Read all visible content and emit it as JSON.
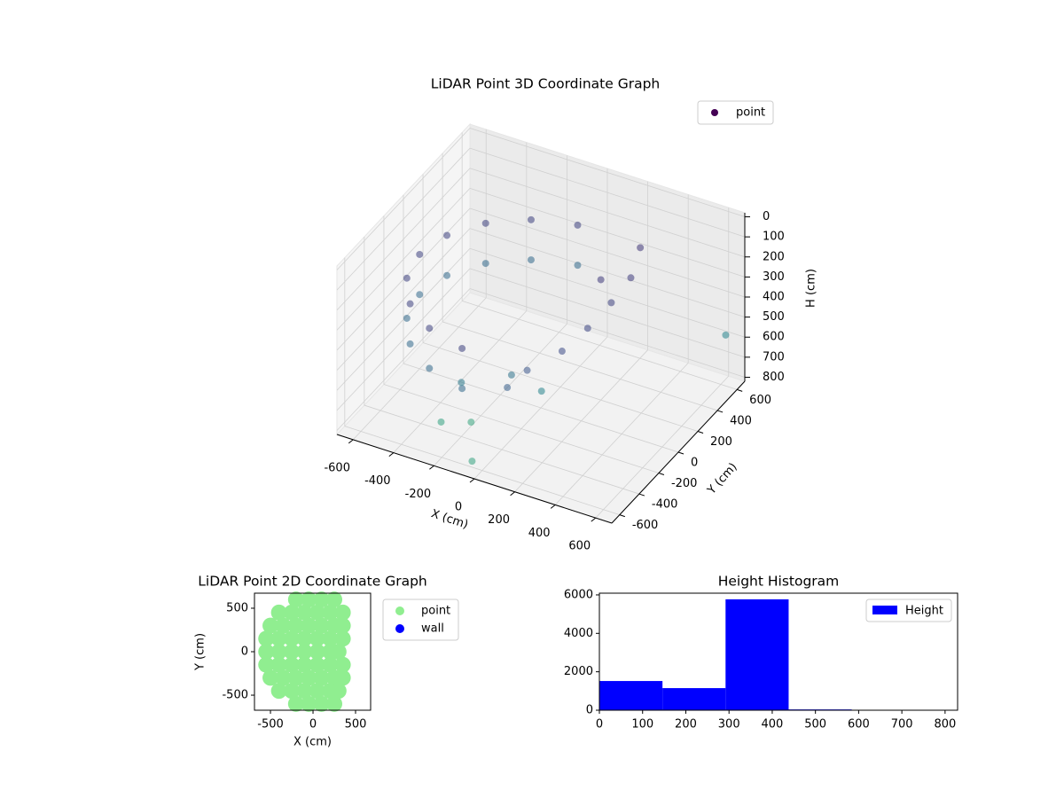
{
  "chart_data": [
    {
      "type": "scatter3d",
      "title": "LiDAR Point 3D Coordinate Graph",
      "xlabel": "X (cm)",
      "ylabel": "Y (cm)",
      "zlabel": "H (cm)",
      "xlim": [
        -680,
        680
      ],
      "ylim": [
        -680,
        680
      ],
      "zlim": [
        820,
        -20
      ],
      "xticks": [
        -600,
        -400,
        -200,
        0,
        200,
        400,
        600
      ],
      "yticks": [
        -600,
        -400,
        -200,
        0,
        200,
        400,
        600
      ],
      "zticks": [
        0,
        100,
        200,
        300,
        400,
        500,
        600,
        700,
        800
      ],
      "colormap": "viridis",
      "grid": true,
      "legend": "upper right",
      "series": [
        {
          "name": "point",
          "color": "#440154",
          "x": [
            -104,
            -300,
            -460,
            -564,
            -600,
            -564,
            -460,
            -300,
            -104,
            -104,
            -300,
            -460,
            -564,
            -600,
            -564,
            -460,
            -300,
            -104,
            250,
            300,
            300,
            280,
            250,
            150,
            100,
            200,
            0,
            -200,
            100,
            -300,
            -200,
            -50,
            600
          ],
          "y": [
            591,
            520,
            386,
            205,
            0,
            -205,
            -386,
            -520,
            -591,
            591,
            520,
            386,
            205,
            0,
            -205,
            -386,
            -520,
            -591,
            500,
            300,
            100,
            -100,
            -300,
            -450,
            -550,
            200,
            -300,
            -400,
            -200,
            -400,
            -300,
            -600,
            650
          ],
          "z": [
            250,
            250,
            250,
            250,
            250,
            250,
            250,
            250,
            250,
            450,
            450,
            450,
            450,
            450,
            450,
            450,
            450,
            450,
            200,
            230,
            250,
            280,
            300,
            350,
            400,
            220,
            500,
            550,
            600,
            780,
            800,
            790,
            600
          ]
        }
      ]
    },
    {
      "type": "scatter",
      "title": "LiDAR Point 2D Coordinate Graph",
      "xlabel": "X (cm)",
      "ylabel": "Y (cm)",
      "xlim": [
        -688,
        677
      ],
      "ylim": [
        -673,
        673
      ],
      "xticks": [
        -500,
        0,
        500
      ],
      "yticks": [
        -500,
        0,
        500
      ],
      "legend": "outside right",
      "series": [
        {
          "name": "point",
          "color": "#90ee90",
          "x": [
            -200,
            -50,
            100,
            250,
            -400,
            -250,
            -100,
            50,
            200,
            350,
            -500,
            -350,
            -200,
            -50,
            100,
            250,
            350,
            -550,
            -400,
            -250,
            -100,
            50,
            200,
            350,
            -550,
            -400,
            -250,
            -100,
            50,
            200,
            300,
            -550,
            -400,
            -250,
            -100,
            50,
            200,
            350,
            -500,
            -350,
            -200,
            -50,
            100,
            250,
            350,
            -400,
            -250,
            -100,
            50,
            200,
            300,
            -200,
            -50,
            100,
            250
          ],
          "y": [
            600,
            600,
            600,
            600,
            450,
            450,
            450,
            450,
            450,
            450,
            300,
            300,
            300,
            300,
            300,
            300,
            300,
            150,
            150,
            150,
            150,
            150,
            150,
            150,
            0,
            0,
            0,
            0,
            0,
            0,
            0,
            -150,
            -150,
            -150,
            -150,
            -150,
            -150,
            -150,
            -300,
            -300,
            -300,
            -300,
            -300,
            -300,
            -300,
            -450,
            -450,
            -450,
            -450,
            -450,
            -450,
            -600,
            -600,
            -600,
            -600
          ]
        },
        {
          "name": "wall",
          "color": "#0000ff",
          "x": [],
          "y": []
        }
      ]
    },
    {
      "type": "histogram",
      "title": "Height Histogram",
      "bins": [
        0,
        146,
        292,
        438,
        584,
        730
      ],
      "xlim": [
        0,
        829
      ],
      "ylim": [
        0,
        6090
      ],
      "xticks": [
        0,
        100,
        200,
        300,
        400,
        500,
        600,
        700,
        800
      ],
      "yticks": [
        0,
        2000,
        4000,
        6000
      ],
      "legend": "upper right",
      "series": [
        {
          "name": "Height",
          "color": "#0000ff",
          "values": [
            1520,
            1150,
            5770,
            40,
            10
          ]
        }
      ]
    }
  ]
}
